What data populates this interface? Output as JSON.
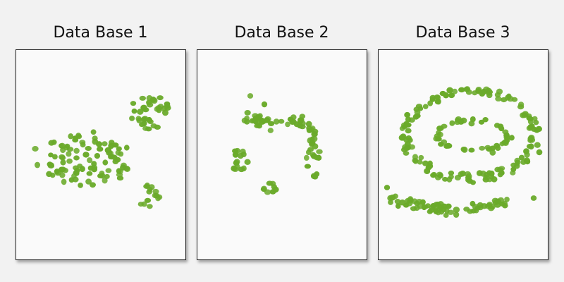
{
  "panels": [
    {
      "title": "Data Base 1"
    },
    {
      "title": "Data Base 2"
    },
    {
      "title": "Data Base 3"
    }
  ],
  "colors": {
    "point": "#6aaa2a",
    "background": "#f2f2f2",
    "panel": "#fafafa"
  }
}
